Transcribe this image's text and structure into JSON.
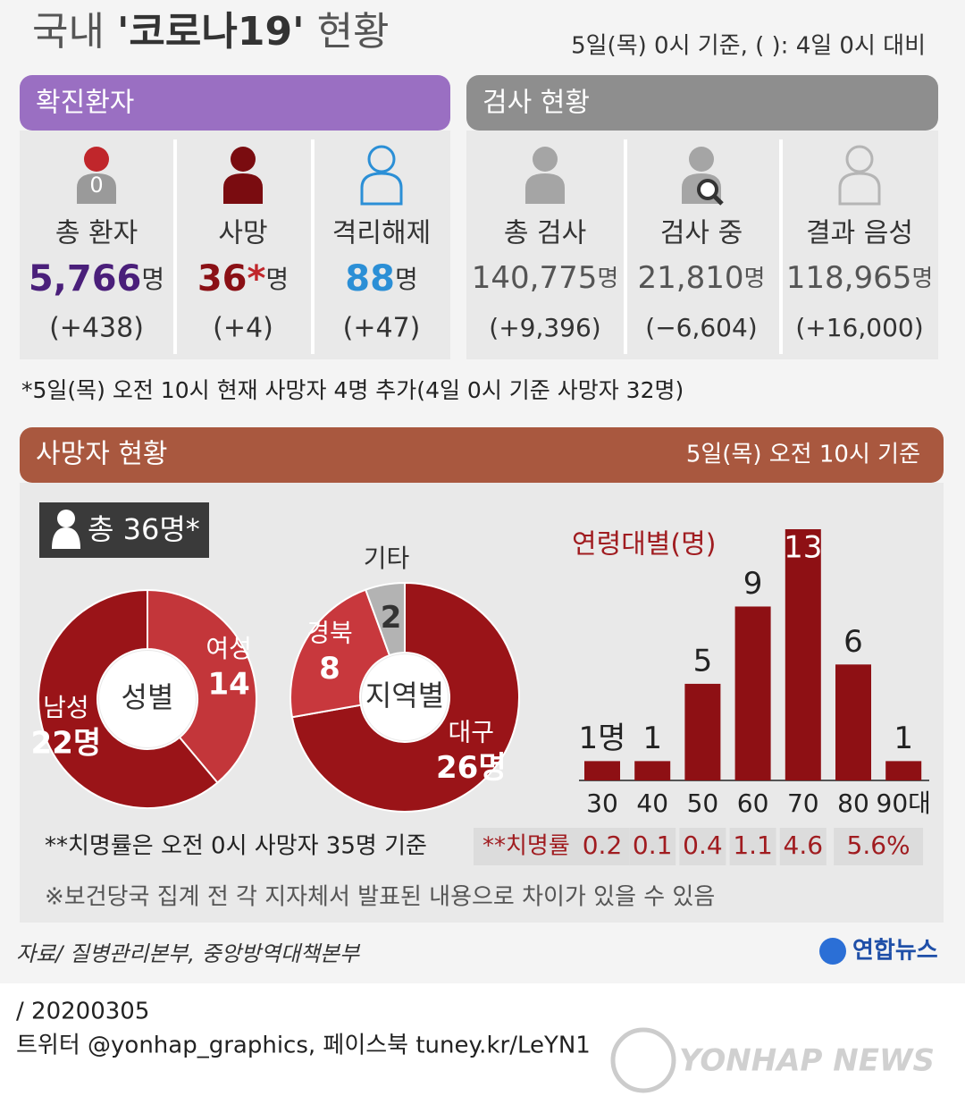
{
  "header": {
    "title": [
      "국내 ",
      "'코로나19'",
      " 현황"
    ],
    "subtitle": "5일(목) 0시 기준, ( ): 4일 0시 대비"
  },
  "confirmed": {
    "heading": "확진환자",
    "items": [
      {
        "label": "총 환자",
        "value": "5,766",
        "unit": "명",
        "change": "(+438)",
        "icon_label": "0"
      },
      {
        "label": "사망",
        "value": "36",
        "mark": "*",
        "unit": "명",
        "change": "(+4)"
      },
      {
        "label": "격리해제",
        "value": "88",
        "unit": "명",
        "change": "(+47)"
      }
    ]
  },
  "tests": {
    "heading": "검사 현황",
    "items": [
      {
        "label": "총 검사",
        "value": "140,775",
        "unit": "명",
        "change": "(+9,396)"
      },
      {
        "label": "검사 중",
        "value": "21,810",
        "unit": "명",
        "change": "(−6,604)"
      },
      {
        "label": "결과 음성",
        "value": "118,965",
        "unit": "명",
        "change": "(+16,000)"
      }
    ]
  },
  "note": "*5일(목) 오전 10시 현재 사망자 4명 추가(4일 0시 기준 사망자 32명)",
  "deaths": {
    "heading": "사망자 현황",
    "basis": "5일(목) 오전 10시 기준",
    "total": "총 36명*",
    "fatality_note": "**치명률은 오전 0시 사망자 35명 기준",
    "fatality": {
      "label": "**치명률",
      "values": [
        "0.2",
        "0.1",
        "0.4",
        "1.1",
        "4.6",
        "5.6%"
      ]
    },
    "disclaimer": "※보건당국 집계 전 각 지자체서 발표된 내용으로 차이가 있을 수 있음"
  },
  "chart_data": [
    {
      "type": "pie",
      "title": "성별",
      "categories": [
        "여성",
        "남성"
      ],
      "values": [
        14,
        22
      ],
      "value_labels": [
        "14",
        "22명"
      ],
      "colors": [
        "#c3363a",
        "#9a1418"
      ]
    },
    {
      "type": "pie",
      "title": "지역별",
      "categories": [
        "대구",
        "경북",
        "기타"
      ],
      "values": [
        26,
        8,
        2
      ],
      "value_labels": [
        "26명",
        "8",
        "2"
      ],
      "colors": [
        "#9a1418",
        "#c8383d",
        "#b3b3b3"
      ]
    },
    {
      "type": "bar",
      "title": "연령대별(명)",
      "categories": [
        "30",
        "40",
        "50",
        "60",
        "70",
        "80",
        "90대"
      ],
      "values": [
        1,
        1,
        5,
        9,
        13,
        6,
        1
      ],
      "value_labels": [
        "1명",
        "1",
        "5",
        "9",
        "13",
        "6",
        "1"
      ],
      "color": "#8e1014"
    }
  ],
  "footer": {
    "source": "자료/ 질병관리본부, 중앙방역대책본부",
    "logo": "연합뉴스",
    "date": "/ 20200305",
    "social": "트위터 @yonhap_graphics, 페이스북 tuney.kr/LeYN1",
    "watermark": "YONHAP NEWS"
  }
}
